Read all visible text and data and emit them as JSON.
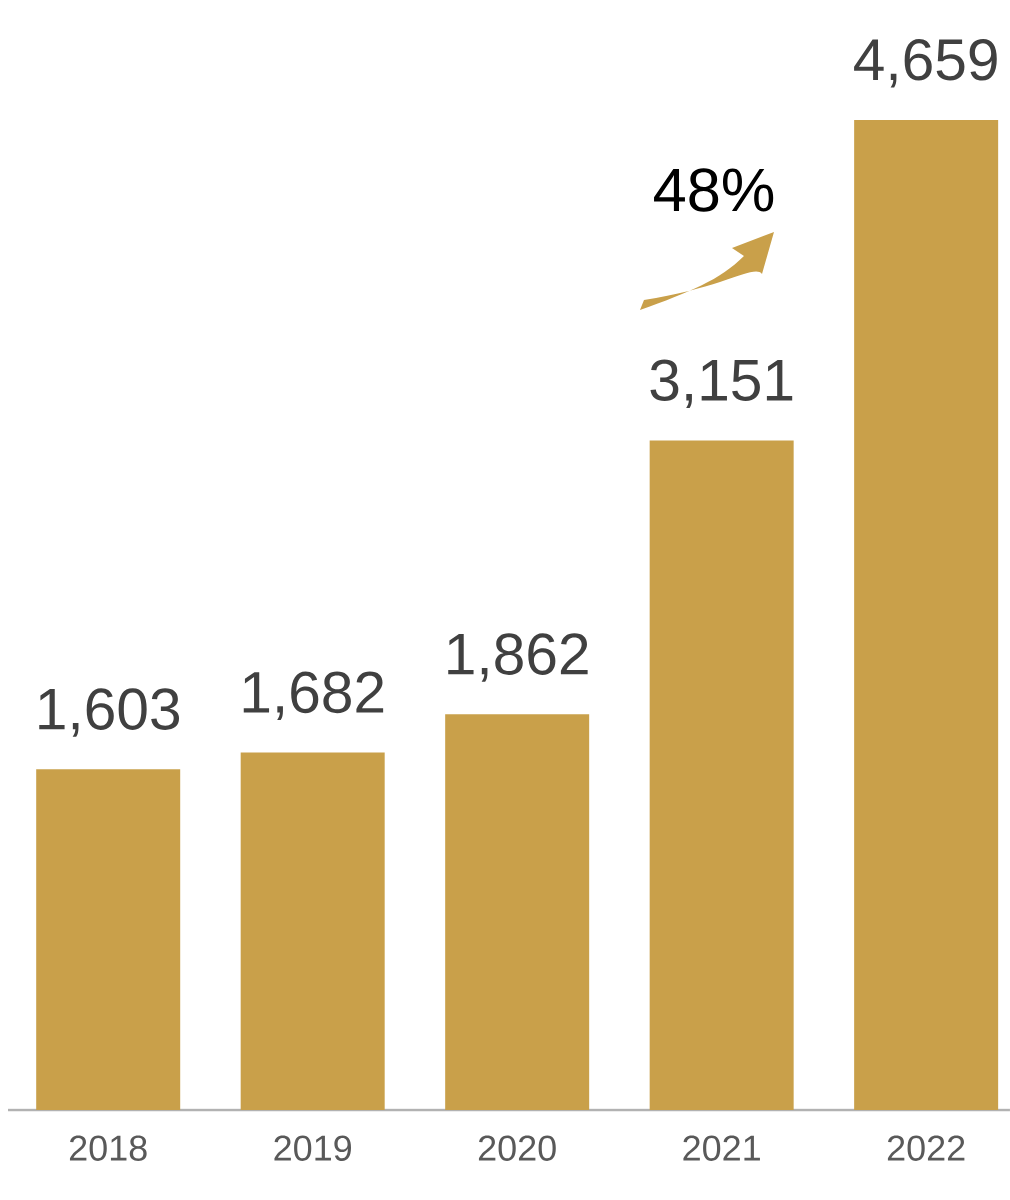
{
  "chart_data": {
    "type": "bar",
    "categories": [
      "2018",
      "2019",
      "2020",
      "2021",
      "2022"
    ],
    "values": [
      1603,
      1682,
      1862,
      3151,
      4659
    ],
    "value_labels": [
      "1,603",
      "1,682",
      "1,862",
      "3,151",
      "4,659"
    ],
    "color": "#c9a04a",
    "annotations": [
      "48%"
    ]
  }
}
